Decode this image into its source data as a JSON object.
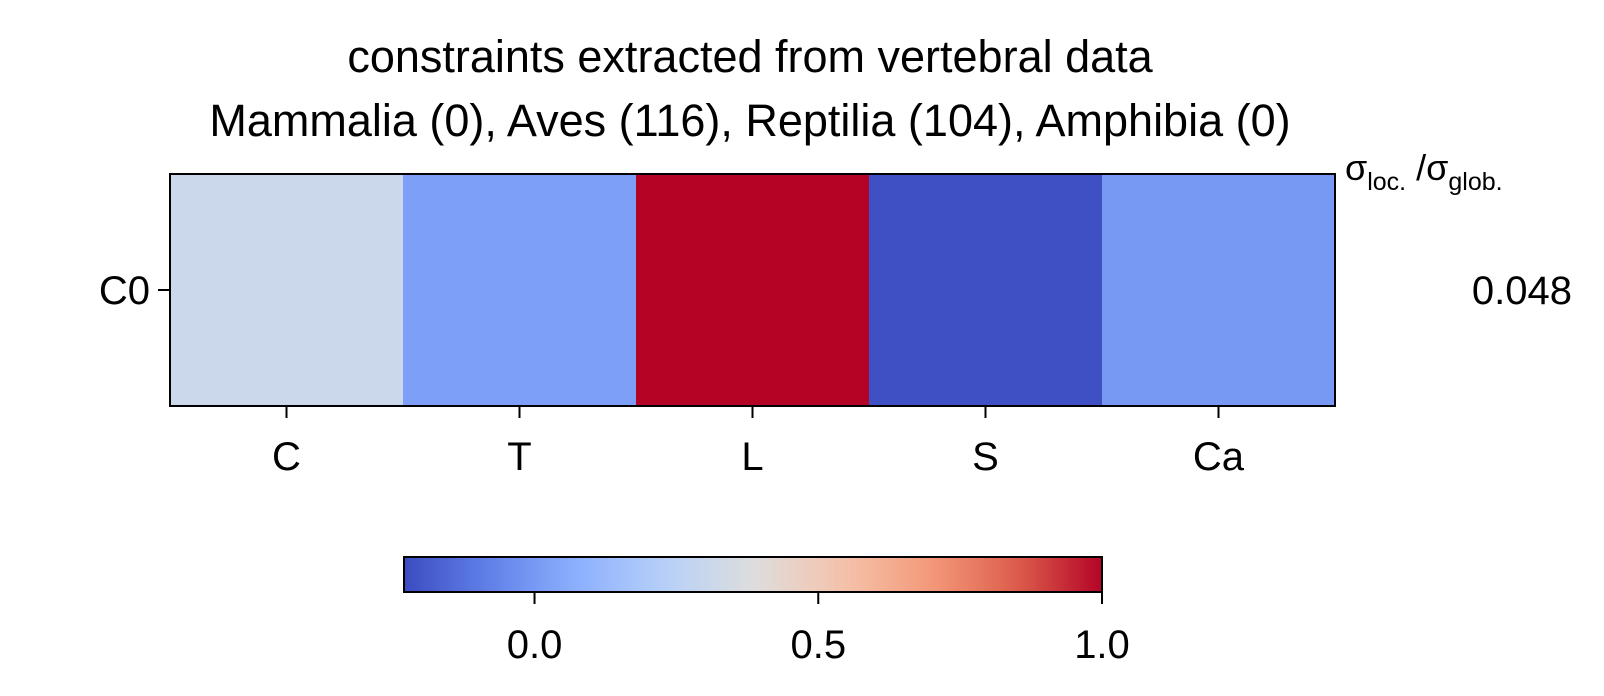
{
  "chart_data": {
    "type": "heatmap",
    "title_line1": "constraints extracted from vertebral data",
    "title_line2": "Mammalia (0), Aves (116), Reptilia (104), Amphibia (0)",
    "columns": [
      "C",
      "T",
      "L",
      "S",
      "Ca"
    ],
    "rows": [
      {
        "label": "C0",
        "values": [
          0.31,
          0.02,
          1.0,
          -0.22,
          0.0
        ],
        "ratio": "0.048"
      }
    ],
    "ratio_header": {
      "sigma": "σ",
      "sub1": "loc.",
      "slash": " /",
      "sub2": "glob."
    },
    "colorbar": {
      "min": -0.23,
      "max": 1.0,
      "ticks": [
        0.0,
        0.5,
        1.0
      ],
      "tick_labels": [
        "0.0",
        "0.5",
        "1.0"
      ],
      "colormap": "coolwarm"
    }
  }
}
